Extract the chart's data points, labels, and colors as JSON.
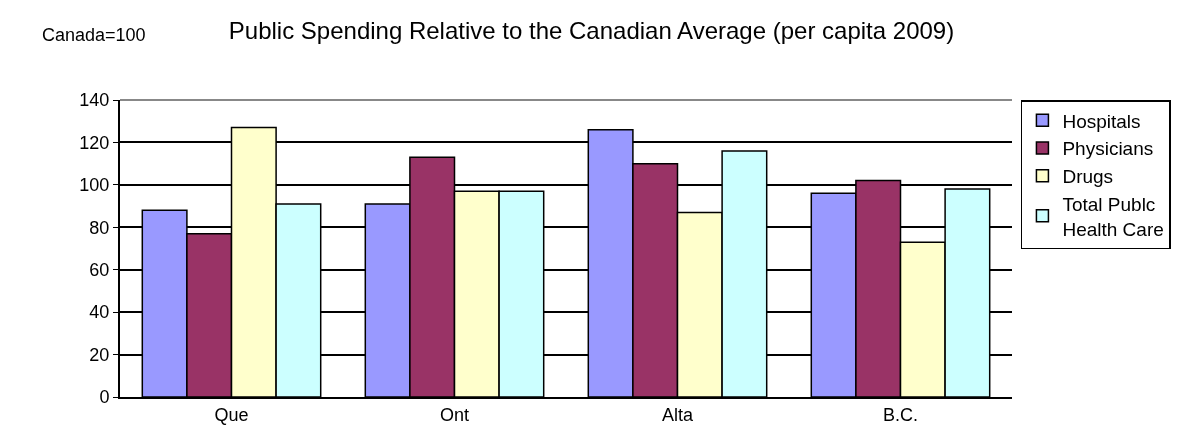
{
  "chart_data": {
    "type": "bar",
    "title": "Public Spending Relative to the Canadian Average (per capita 2009)",
    "ylabel": "Canada=100",
    "categories": [
      "Que",
      "Ont",
      "Alta",
      "B.C."
    ],
    "series": [
      {
        "name": "Hospitals",
        "color": "#9999ff",
        "values": [
          88,
          91,
          126,
          96
        ]
      },
      {
        "name": "Physicians",
        "color": "#993366",
        "values": [
          77,
          113,
          110,
          102
        ]
      },
      {
        "name": "Drugs",
        "color": "#ffffcc",
        "values": [
          127,
          97,
          87,
          73
        ]
      },
      {
        "name": "Total Publc Health Care",
        "color": "#ccffff",
        "values": [
          91,
          97,
          116,
          98
        ]
      }
    ],
    "ylim": [
      0,
      140
    ],
    "yticks": [
      0,
      20,
      40,
      60,
      80,
      100,
      120,
      140
    ],
    "grid": "y",
    "legend": "right"
  }
}
